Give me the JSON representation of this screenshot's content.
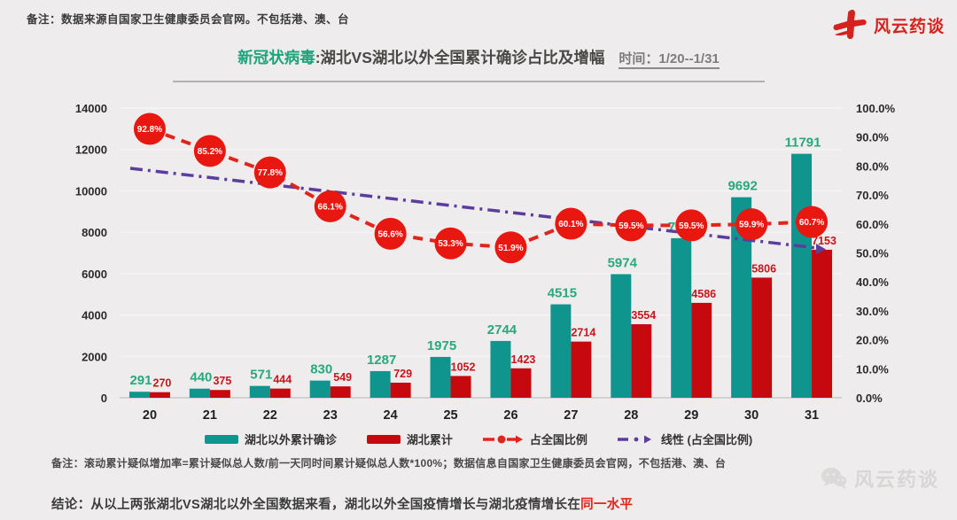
{
  "top_note": "备注：数据来源自国家卫生健康委员会官网。不包括港、澳、台",
  "brand": "风云药谈",
  "title": {
    "highlight": "新冠状病毒",
    "main": ":湖北VS湖北以外全国累计确诊占比及增幅",
    "time": "时间：1/20--1/31"
  },
  "chart_data": {
    "type": "combo",
    "categories": [
      "20",
      "21",
      "22",
      "23",
      "24",
      "25",
      "26",
      "27",
      "28",
      "29",
      "30",
      "31"
    ],
    "series": [
      {
        "name": "湖北以外累计确诊",
        "type": "bar",
        "color": "#0f948e",
        "label_color": "#27a87f",
        "values": [
          291,
          440,
          571,
          830,
          1287,
          1975,
          2744,
          4515,
          5974,
          7711,
          9692,
          11791
        ]
      },
      {
        "name": "湖北累计",
        "type": "bar",
        "color": "#c5090f",
        "label_color": "#c5161d",
        "values": [
          270,
          375,
          444,
          549,
          729,
          1052,
          1423,
          2714,
          3554,
          4586,
          5806,
          7153
        ]
      },
      {
        "name": "占全国比例",
        "type": "line",
        "color": "#e0251c",
        "bubble_color": "#e8170f",
        "values_pct": [
          92.8,
          85.2,
          77.8,
          66.1,
          56.6,
          53.3,
          51.9,
          60.1,
          59.5,
          59.5,
          59.9,
          60.7
        ]
      },
      {
        "name": "线性 (占全国比例)",
        "type": "trend",
        "color": "#5b3d9e",
        "start_pct": 79.2,
        "end_pct": 51.7
      }
    ],
    "left_axis": {
      "min": 0,
      "max": 14000,
      "step": 2000
    },
    "right_axis": {
      "min": 0,
      "max": 100,
      "step": 10,
      "suffix": "%"
    },
    "grid": true,
    "legend_position": "bottom"
  },
  "bottom_note": "备注：滚动累计疑似增加率=累计疑似总人数/前一天同时间累计疑似总人数*100%；数据信息自国家卫生健康委员会官网，不包括港、澳、台",
  "conclusion": {
    "label": "结论：",
    "text": "从以上两张湖北VS湖北以外全国数据来看，湖北以外全国疫情增长与湖北疫情增长在",
    "highlight": "同一水平"
  },
  "watermark": "风云药谈"
}
